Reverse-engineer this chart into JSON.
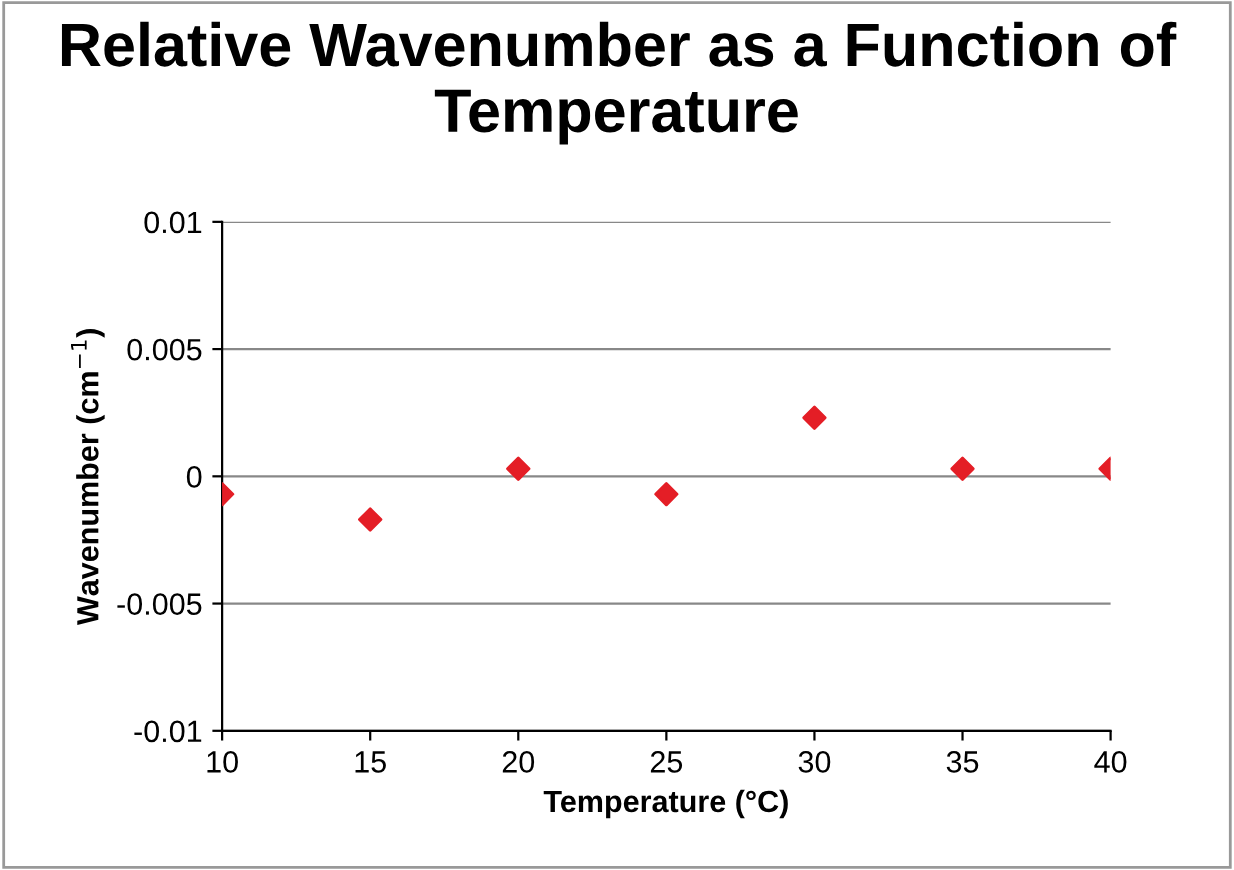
{
  "chart_data": {
    "type": "scatter",
    "title": "Relative Wavenumber as a Function of Temperature",
    "xlabel": "Temperature (°C)",
    "ylabel": "Wavenumber (cm$^{−1}$)",
    "x": [
      10,
      15,
      20,
      25,
      30,
      35,
      40
    ],
    "values": [
      -0.0007,
      -0.0017,
      0.0003,
      -0.0007,
      0.0023,
      0.0003,
      0.0003
    ],
    "color": "#e41e26",
    "marker": "diamond",
    "xlim": [
      10,
      40
    ],
    "xticks": [
      10,
      15,
      20,
      25,
      30,
      35,
      40
    ],
    "ylim": [
      -0.01,
      0.01
    ],
    "yticks": [
      -0.01,
      -0.005,
      0,
      0.005,
      0.01
    ],
    "grid": "y",
    "legend": false
  }
}
